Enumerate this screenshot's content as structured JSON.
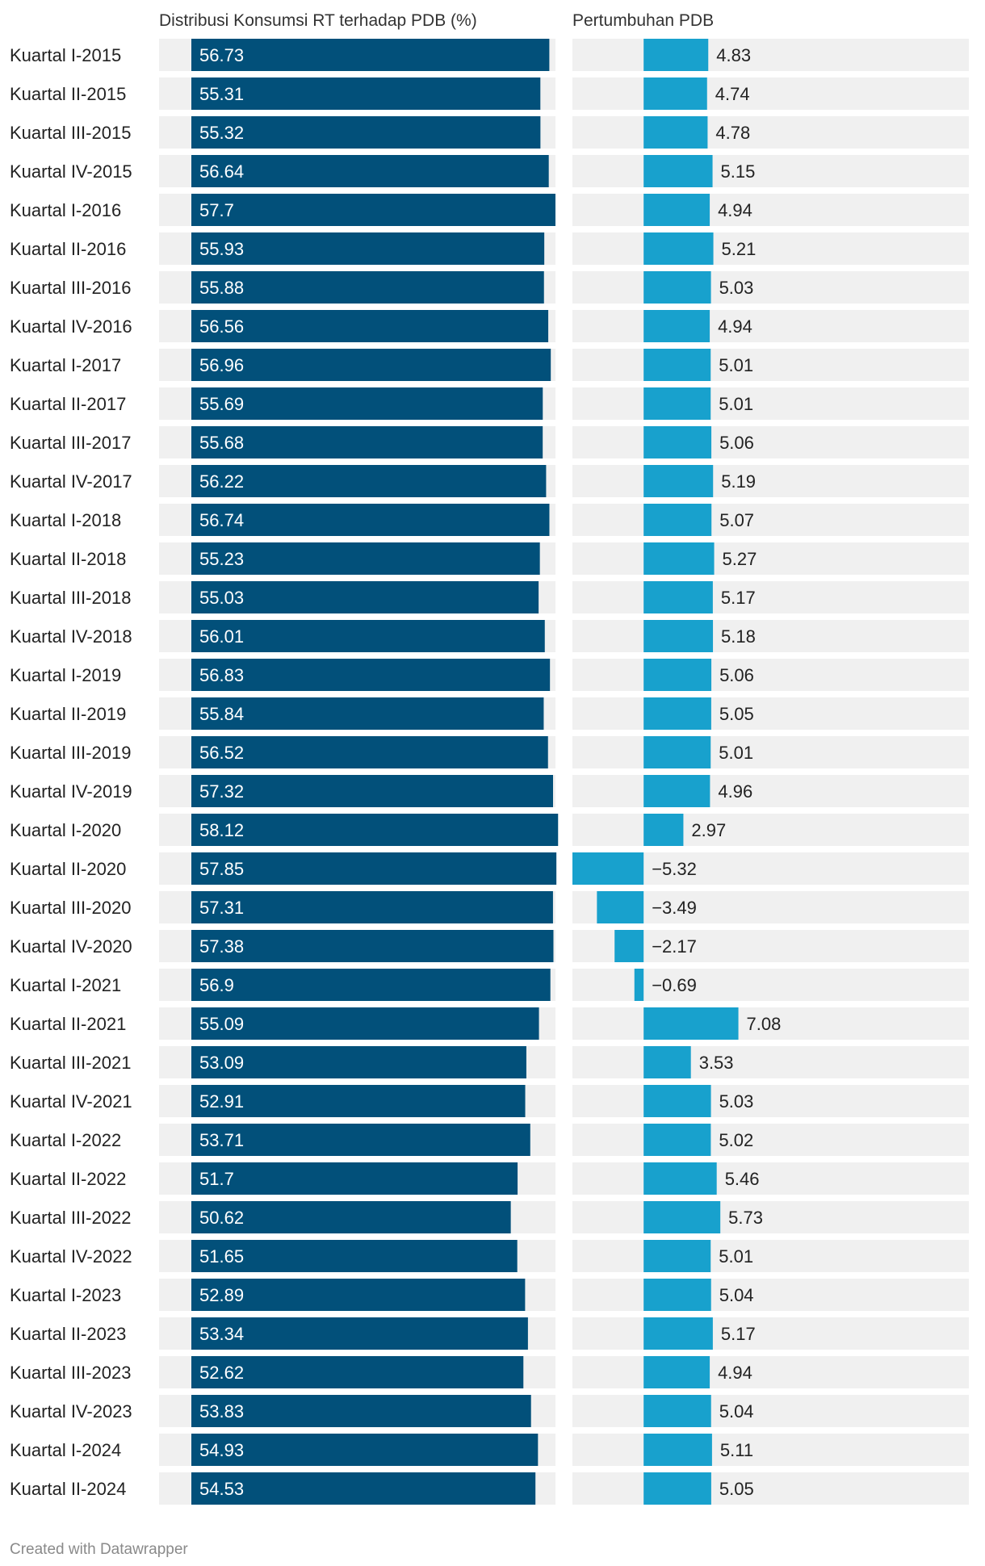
{
  "credit": "Created with Datawrapper",
  "colors": {
    "consumption_bar": "#02507a",
    "growth_bar": "#18a1cd",
    "track": "#f0f0f0"
  },
  "chart_data": [
    {
      "type": "bar",
      "orientation": "horizontal",
      "title": "Distribusi Konsumsi RT terhadap PDB (%)",
      "xlim": [
        0,
        58.6
      ],
      "categories": [
        "Kuartal I-2015",
        "Kuartal II-2015",
        "Kuartal III-2015",
        "Kuartal IV-2015",
        "Kuartal I-2016",
        "Kuartal II-2016",
        "Kuartal III-2016",
        "Kuartal IV-2016",
        "Kuartal I-2017",
        "Kuartal II-2017",
        "Kuartal III-2017",
        "Kuartal IV-2017",
        "Kuartal I-2018",
        "Kuartal II-2018",
        "Kuartal III-2018",
        "Kuartal IV-2018",
        "Kuartal I-2019",
        "Kuartal II-2019",
        "Kuartal III-2019",
        "Kuartal IV-2019",
        "Kuartal I-2020",
        "Kuartal II-2020",
        "Kuartal III-2020",
        "Kuartal IV-2020",
        "Kuartal I-2021",
        "Kuartal II-2021",
        "Kuartal III-2021",
        "Kuartal IV-2021",
        "Kuartal I-2022",
        "Kuartal II-2022",
        "Kuartal III-2022",
        "Kuartal IV-2022",
        "Kuartal I-2023",
        "Kuartal II-2023",
        "Kuartal III-2023",
        "Kuartal IV-2023",
        "Kuartal I-2024",
        "Kuartal II-2024"
      ],
      "values": [
        56.73,
        55.31,
        55.32,
        56.64,
        57.7,
        55.93,
        55.88,
        56.56,
        56.96,
        55.69,
        55.68,
        56.22,
        56.74,
        55.23,
        55.03,
        56.01,
        56.83,
        55.84,
        56.52,
        57.32,
        58.12,
        57.85,
        57.31,
        57.38,
        56.9,
        55.09,
        53.09,
        52.91,
        53.71,
        51.7,
        50.62,
        51.65,
        52.89,
        53.34,
        52.62,
        53.83,
        54.93,
        54.53
      ],
      "labels": [
        "56.73",
        "55.31",
        "55.32",
        "56.64",
        "57.7",
        "55.93",
        "55.88",
        "56.56",
        "56.96",
        "55.69",
        "55.68",
        "56.22",
        "56.74",
        "55.23",
        "55.03",
        "56.01",
        "56.83",
        "55.84",
        "56.52",
        "57.32",
        "58.12",
        "57.85",
        "57.31",
        "57.38",
        "56.9",
        "55.09",
        "53.09",
        "52.91",
        "53.71",
        "51.7",
        "50.62",
        "51.65",
        "52.89",
        "53.34",
        "52.62",
        "53.83",
        "54.93",
        "54.53"
      ]
    },
    {
      "type": "bar",
      "orientation": "horizontal",
      "title": "Pertumbuhan PDB",
      "xlim": [
        -5.32,
        24.3
      ],
      "categories": [
        "Kuartal I-2015",
        "Kuartal II-2015",
        "Kuartal III-2015",
        "Kuartal IV-2015",
        "Kuartal I-2016",
        "Kuartal II-2016",
        "Kuartal III-2016",
        "Kuartal IV-2016",
        "Kuartal I-2017",
        "Kuartal II-2017",
        "Kuartal III-2017",
        "Kuartal IV-2017",
        "Kuartal I-2018",
        "Kuartal II-2018",
        "Kuartal III-2018",
        "Kuartal IV-2018",
        "Kuartal I-2019",
        "Kuartal II-2019",
        "Kuartal III-2019",
        "Kuartal IV-2019",
        "Kuartal I-2020",
        "Kuartal II-2020",
        "Kuartal III-2020",
        "Kuartal IV-2020",
        "Kuartal I-2021",
        "Kuartal II-2021",
        "Kuartal III-2021",
        "Kuartal IV-2021",
        "Kuartal I-2022",
        "Kuartal II-2022",
        "Kuartal III-2022",
        "Kuartal IV-2022",
        "Kuartal I-2023",
        "Kuartal II-2023",
        "Kuartal III-2023",
        "Kuartal IV-2023",
        "Kuartal I-2024",
        "Kuartal II-2024"
      ],
      "values": [
        4.83,
        4.74,
        4.78,
        5.15,
        4.94,
        5.21,
        5.03,
        4.94,
        5.01,
        5.01,
        5.06,
        5.19,
        5.07,
        5.27,
        5.17,
        5.18,
        5.06,
        5.05,
        5.01,
        4.96,
        2.97,
        -5.32,
        -3.49,
        -2.17,
        -0.69,
        7.08,
        3.53,
        5.03,
        5.02,
        5.46,
        5.73,
        5.01,
        5.04,
        5.17,
        4.94,
        5.04,
        5.11,
        5.05
      ],
      "labels": [
        "4.83",
        "4.74",
        "4.78",
        "5.15",
        "4.94",
        "5.21",
        "5.03",
        "4.94",
        "5.01",
        "5.01",
        "5.06",
        "5.19",
        "5.07",
        "5.27",
        "5.17",
        "5.18",
        "5.06",
        "5.05",
        "5.01",
        "4.96",
        "2.97",
        "−5.32",
        "−3.49",
        "−2.17",
        "−0.69",
        "7.08",
        "3.53",
        "5.03",
        "5.02",
        "5.46",
        "5.73",
        "5.01",
        "5.04",
        "5.17",
        "4.94",
        "5.04",
        "5.11",
        "5.05"
      ]
    }
  ]
}
